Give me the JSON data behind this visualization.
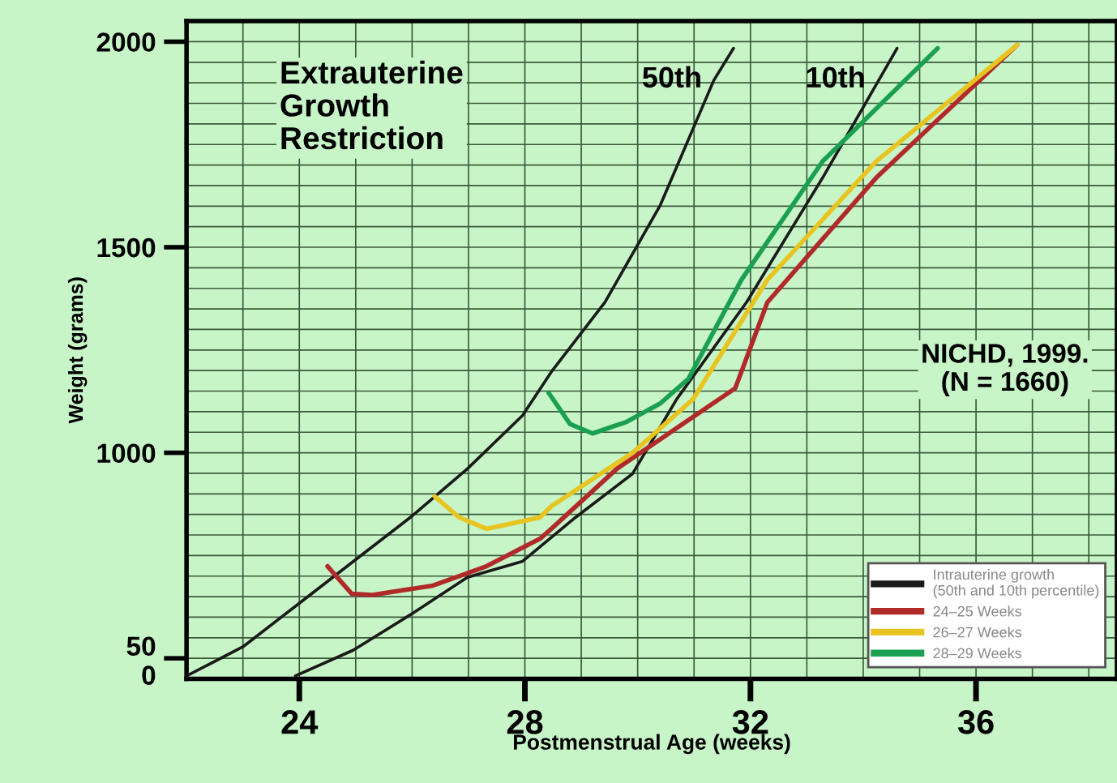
{
  "chart_data": {
    "type": "line",
    "xlabel": "Postmenstrual Age (weeks)",
    "ylabel": "Weight (grams)",
    "xlim": [
      22,
      38.5
    ],
    "ylim": [
      450,
      2050
    ],
    "xticks": [
      24,
      28,
      32,
      36
    ],
    "yticks": [
      2000,
      1500,
      1000,
      {
        "value": 500,
        "label": "50\n0"
      }
    ],
    "grid": true,
    "legend": "bottom right",
    "line_style": "solid",
    "marker": "none",
    "series": [
      {
        "name": "Intrauterine growth\n(50th and 10th percentile)",
        "color": "#1a1a1a",
        "x": [
          22.0,
          23.0,
          24.0,
          24.96,
          25.97,
          26.98,
          27.96,
          28.47,
          29.42,
          30.4,
          31.35,
          31.7
        ],
        "values": [
          457,
          528,
          634,
          736,
          843,
          961,
          1091,
          1197,
          1366,
          1602,
          1906,
          1984
        ]
      },
      {
        "color": "#1a1a1a",
        "x": [
          23.93,
          24.96,
          25.97,
          26.98,
          27.96,
          28.9,
          29.91,
          30.69,
          31.93,
          33.28,
          34.6
        ],
        "values": [
          457,
          520,
          606,
          697,
          736,
          843,
          949,
          1130,
          1366,
          1669,
          1984
        ]
      },
      {
        "name": "24–25 Weeks",
        "color": "#b02a2a",
        "x": [
          24.5,
          24.93,
          25.3,
          26.37,
          27.32,
          28.27,
          28.47,
          29.63,
          31.73,
          32.3,
          34.23,
          36.73
        ],
        "values": [
          724,
          657,
          654,
          677,
          724,
          791,
          815,
          961,
          1157,
          1366,
          1669,
          1992
        ]
      },
      {
        "name": "26–27 Weeks",
        "color": "#e8c420",
        "x": [
          26.4,
          26.83,
          27.32,
          28.27,
          28.47,
          29.91,
          30.98,
          32.3,
          34.23,
          36.73
        ],
        "values": [
          894,
          843,
          815,
          843,
          870,
          1000,
          1130,
          1421,
          1709,
          1992
        ]
      },
      {
        "name": "28–29 Weeks",
        "color": "#1aa050",
        "x": [
          28.42,
          28.8,
          29.2,
          29.8,
          30.4,
          30.9,
          31.84,
          33.28,
          35.32
        ],
        "values": [
          1146,
          1070,
          1047,
          1075,
          1120,
          1180,
          1421,
          1709,
          1984
        ]
      }
    ],
    "annotations": [
      "Extrauterine\nGrowth\nRestriction",
      "NICHD, 1999.\n(N = 1660)",
      "50th",
      "10th"
    ]
  }
}
